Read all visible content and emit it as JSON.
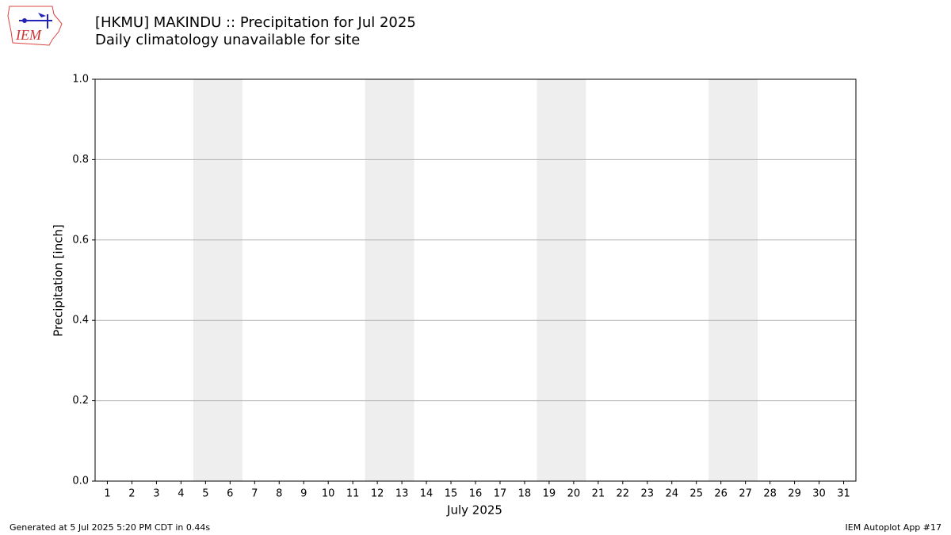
{
  "chart_data": {
    "type": "bar",
    "title": "[HKMU] MAKINDU :: Precipitation for Jul 2025",
    "subtitle": "Daily climatology unavailable for site",
    "xlabel": "July 2025",
    "ylabel": "Precipitation [inch]",
    "xlim": [
      0.5,
      31.5
    ],
    "xticks": [
      1,
      2,
      3,
      4,
      5,
      6,
      7,
      8,
      9,
      10,
      11,
      12,
      13,
      14,
      15,
      16,
      17,
      18,
      19,
      20,
      21,
      22,
      23,
      24,
      25,
      26,
      27,
      28,
      29,
      30,
      31
    ],
    "ylim": [
      0,
      1
    ],
    "yticks": [
      {
        "value": 0,
        "label": "0.0"
      },
      0.2,
      0.4,
      0.6,
      0.8,
      {
        "value": 1,
        "label": "1.0"
      }
    ],
    "grid": true,
    "shaded_spans": [
      [
        4.5,
        6.5
      ],
      [
        11.5,
        13.5
      ],
      [
        18.5,
        20.5
      ],
      [
        25.5,
        27.5
      ]
    ],
    "shade_color": "#eeeeee",
    "logo_text": "IEM",
    "footer_left": "Generated at 5 Jul 2025 5:20 PM CDT in 0.44s",
    "footer_right": "IEM Autoplot App #17"
  }
}
